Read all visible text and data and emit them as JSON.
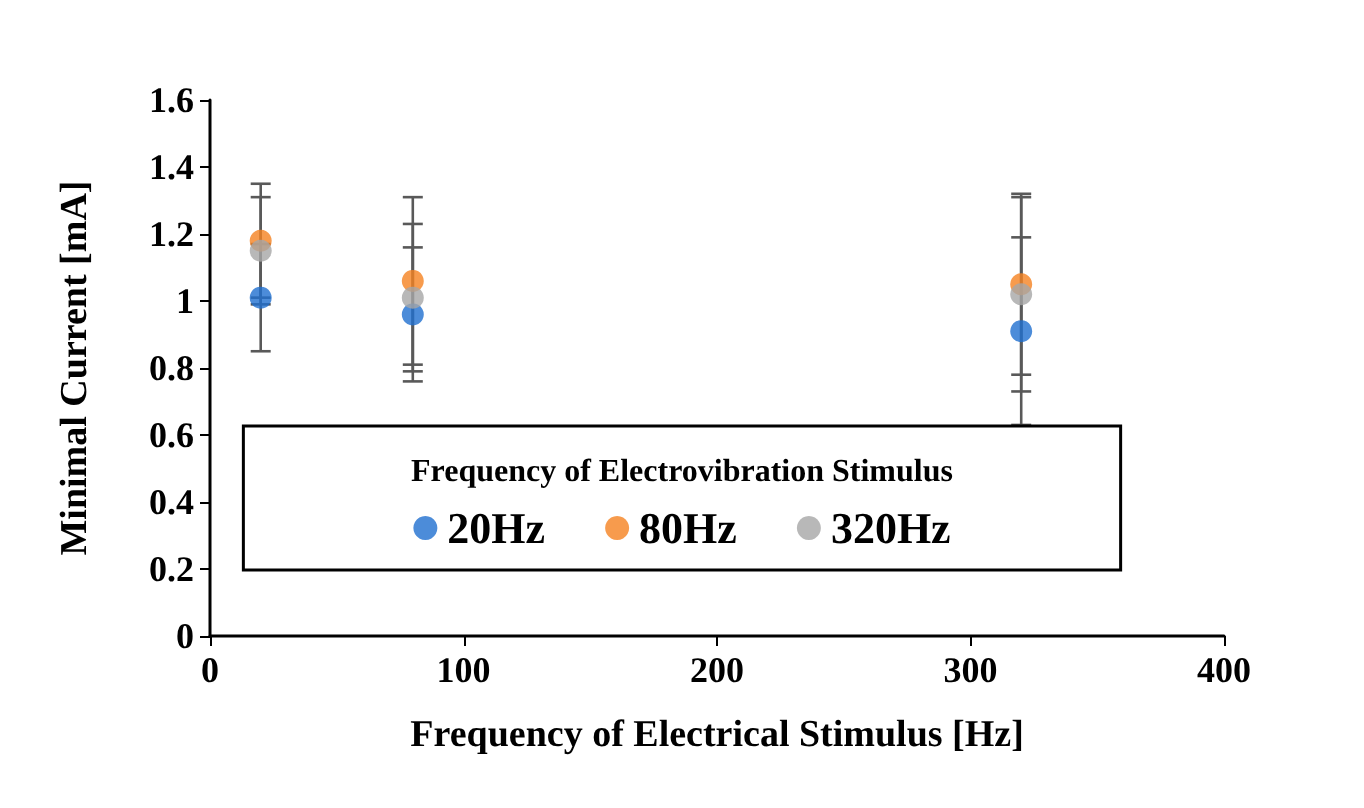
{
  "chart_data": {
    "type": "scatter",
    "xlabel": "Frequency of Electrical Stimulus [Hz]",
    "ylabel": "Minimal Current [mA]",
    "legend_title": "Frequency of Electrovibration Stimulus",
    "x": [
      20,
      80,
      320
    ],
    "series": [
      {
        "name": "20Hz",
        "color": "#1f6fd0",
        "values": [
          1.01,
          0.96,
          0.91
        ],
        "errors": [
          0.16,
          0.2,
          0.28
        ]
      },
      {
        "name": "80Hz",
        "color": "#f58220",
        "values": [
          1.18,
          1.06,
          1.05
        ],
        "errors": [
          0.17,
          0.25,
          0.27
        ]
      },
      {
        "name": "320Hz",
        "color": "#a6a6a6",
        "values": [
          1.15,
          1.01,
          1.02
        ],
        "errors": [
          0.16,
          0.22,
          0.29
        ]
      }
    ],
    "xlim": [
      0,
      400
    ],
    "xticks": [
      0,
      100,
      200,
      300,
      400
    ],
    "ylim": [
      0,
      1.6
    ],
    "yticks": [
      0,
      0.2,
      0.4,
      0.6,
      0.8,
      1,
      1.2,
      1.4,
      1.6
    ],
    "grid": false,
    "legend": "bottom",
    "marker": "circle"
  }
}
